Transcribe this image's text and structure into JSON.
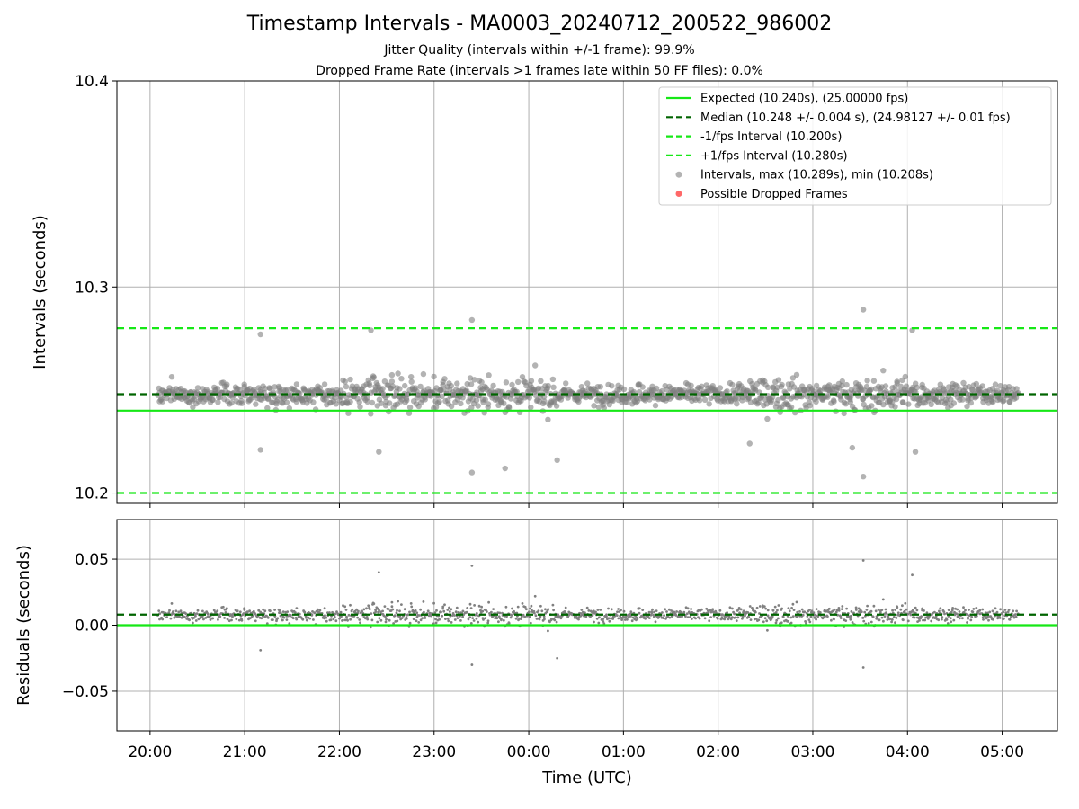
{
  "header": {
    "title": "Timestamp Intervals - MA0003_20240712_200522_986002",
    "subtitle1": "Jitter Quality (intervals within +/-1 frame): 99.9%",
    "subtitle2": "Dropped Frame Rate (intervals >1 frames late within 50 FF files): 0.0%"
  },
  "colors": {
    "expected": "#16e816",
    "median": "#006400",
    "interval_bounds": "#16e816",
    "points": "#808080",
    "dropped": "#ff4d4d",
    "grid": "#b0b0b0"
  },
  "chart_data": [
    {
      "type": "scatter",
      "ylabel": "Intervals (seconds)",
      "ylim": [
        10.195,
        10.4
      ],
      "yticks": [
        10.2,
        10.3,
        10.4
      ],
      "ytick_labels": [
        "10.2",
        "10.3",
        "10.4"
      ],
      "xlim": [
        "19:39",
        "05:35"
      ],
      "xticks": [
        "20:00",
        "21:00",
        "22:00",
        "23:00",
        "00:00",
        "01:00",
        "02:00",
        "03:00",
        "04:00",
        "05:00"
      ],
      "grid": true,
      "legend_position": "top-right",
      "lines": [
        {
          "name": "Expected (10.240s), (25.00000 fps)",
          "y": 10.24,
          "style": "solid"
        },
        {
          "name": "Median (10.248 +/- 0.004 s), (24.98127 +/- 0.01 fps)",
          "y": 10.248,
          "style": "dashed"
        },
        {
          "name": "-1/fps Interval (10.200s)",
          "y": 10.2,
          "style": "dashed"
        },
        {
          "name": "+1/fps Interval (10.280s)",
          "y": 10.28,
          "style": "dashed"
        }
      ],
      "series": [
        {
          "name": "Intervals, max (10.289s), min (10.208s)",
          "time_range": [
            "20:05",
            "05:10"
          ],
          "center": 10.248,
          "max": 10.289,
          "min": 10.208
        },
        {
          "name": "Possible Dropped Frames",
          "count": 0
        }
      ],
      "outliers": [
        {
          "t": "23:24",
          "y": 10.284
        },
        {
          "t": "03:32",
          "y": 10.289
        },
        {
          "t": "03:32",
          "y": 10.208
        },
        {
          "t": "23:24",
          "y": 10.21
        },
        {
          "t": "21:10",
          "y": 10.277
        },
        {
          "t": "22:20",
          "y": 10.279
        },
        {
          "t": "04:03",
          "y": 10.279
        },
        {
          "t": "21:10",
          "y": 10.221
        },
        {
          "t": "22:25",
          "y": 10.22
        },
        {
          "t": "00:18",
          "y": 10.216
        },
        {
          "t": "23:45",
          "y": 10.212
        },
        {
          "t": "02:20",
          "y": 10.224
        },
        {
          "t": "04:05",
          "y": 10.22
        },
        {
          "t": "03:25",
          "y": 10.222
        }
      ]
    },
    {
      "type": "scatter",
      "xlabel": "Time (UTC)",
      "ylabel": "Residuals (seconds)",
      "ylim": [
        -0.08,
        0.08
      ],
      "yticks": [
        0.05,
        0.0,
        -0.05
      ],
      "ytick_labels": [
        "0.05",
        "0.00",
        "−0.05"
      ],
      "xlim": [
        "19:39",
        "05:35"
      ],
      "xticks": [
        "20:00",
        "21:00",
        "22:00",
        "23:00",
        "00:00",
        "01:00",
        "02:00",
        "03:00",
        "04:00",
        "05:00"
      ],
      "grid": true,
      "lines": [
        {
          "name": "Expected",
          "y": 0.0,
          "style": "solid"
        },
        {
          "name": "Median",
          "y": 0.008,
          "style": "dashed"
        }
      ],
      "series": [
        {
          "name": "Residuals",
          "time_range": [
            "20:05",
            "05:10"
          ],
          "center": 0.008,
          "max": 0.049,
          "min": -0.032
        }
      ]
    }
  ]
}
